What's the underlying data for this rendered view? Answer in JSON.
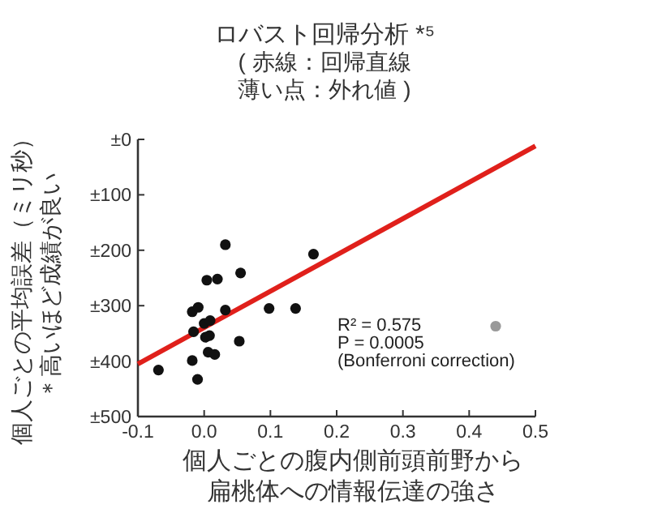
{
  "chart_data": {
    "type": "scatter",
    "title": "ロバスト回帰分析 *⁵",
    "subtitle": "( 赤線：回帰直線薄い点：外れ値 )",
    "xlabel": "個人ごとの腹内側前頭前野から扁桃体への情報伝達の強さ",
    "ylabel": "個人ごとの平均誤差（ミリ秒）＊高いほど成績が良い",
    "xlim": [
      -0.1,
      0.5
    ],
    "xticks": [
      -0.1,
      {
        "value": 0,
        "label": "0.0"
      },
      0.1,
      0.2,
      0.3,
      0.4,
      0.5
    ],
    "ylim": [
      500,
      0
    ],
    "yticks": [
      {
        "value": 0,
        "label": "±0"
      },
      {
        "value": 100,
        "label": "±100"
      },
      {
        "value": 200,
        "label": "±200"
      },
      {
        "value": 300,
        "label": "±300"
      },
      {
        "value": 400,
        "label": "±400"
      },
      {
        "value": 500,
        "label": "±500"
      }
    ],
    "marker": "circle",
    "grid": false,
    "series": [
      {
        "type": "line",
        "color": "#e0201b",
        "marker": "none",
        "x": [
          -0.1,
          0.5
        ],
        "values": [
          405,
          12
        ]
      },
      {
        "type": "scatter",
        "color": "#111111",
        "x": [
          -0.069,
          -0.018,
          -0.01,
          -0.018,
          -0.009,
          -0.016,
          0.0,
          0.009,
          0.002,
          0.008,
          0.006,
          0.016,
          0.004,
          0.02,
          0.032,
          0.032,
          0.055,
          0.053,
          0.098,
          0.138,
          0.165
        ],
        "values": [
          416,
          399,
          433,
          311,
          303,
          347,
          332,
          327,
          357,
          354,
          384,
          388,
          254,
          252,
          190,
          308,
          241,
          364,
          305,
          305,
          207
        ]
      },
      {
        "type": "scatter",
        "color": "#999999",
        "x": [
          0.44
        ],
        "values": [
          337
        ]
      }
    ],
    "annotations": [
      "R² = 0.575",
      "P = 0.0005",
      "(Bonferroni correction)"
    ]
  }
}
